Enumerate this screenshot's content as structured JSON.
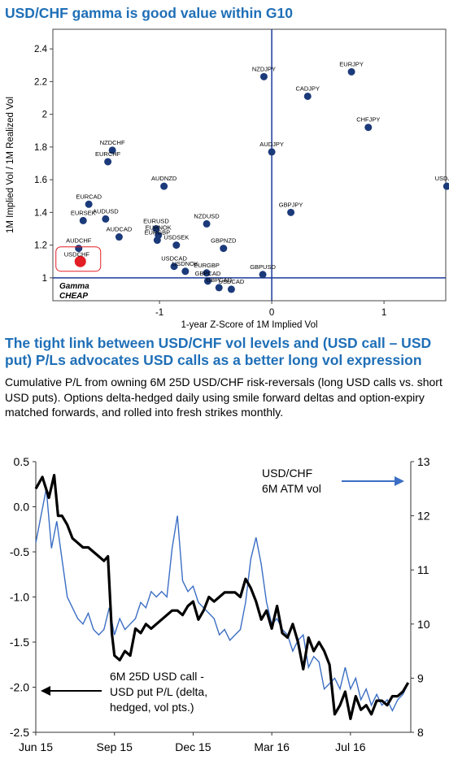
{
  "charts_header": {
    "scatter_title": "USD/CHF gamma is good value within G10",
    "line_title": "The tight link between USD/CHF vol levels and (USD call – USD put) P/Ls advocates USD calls as a better long vol expression",
    "line_description": "Cumulative P/L from owning 6M 25D USD/CHF risk-reversals (long USD calls vs. short USD puts). Options delta-hedged daily using smile forward deltas and option-expiry matched forwards, and rolled into fresh strikes monthly."
  },
  "colors": {
    "accent": "#1f6fb7",
    "point": "#1b3a7a",
    "highlight": "#e31e24",
    "axis": "#1b3a9a",
    "line_black": "#000000",
    "line_blue": "#3b6ec4"
  },
  "chart_data": [
    {
      "type": "scatter",
      "title": "USD/CHF gamma is good value within G10",
      "xlabel": "1-year Z-Score of 1M Implied Vol",
      "ylabel": "1M Implied Vol / 1M Realized Vol",
      "xlim": [
        -1.95,
        1.55
      ],
      "ylim": [
        0.86,
        2.52
      ],
      "x_ticks": [
        "-1",
        "0",
        "1"
      ],
      "y_ticks": [
        "1",
        "1.2",
        "1.4",
        "1.6",
        "1.8",
        "2",
        "2.2",
        "2.4"
      ],
      "annotation": "Gamma CHEAP",
      "grid": false,
      "points": [
        {
          "label": "NZDJPY",
          "x": -0.07,
          "y": 2.23
        },
        {
          "label": "EURJPY",
          "x": 0.71,
          "y": 2.26
        },
        {
          "label": "CADJPY",
          "x": 0.32,
          "y": 2.11
        },
        {
          "label": "CHFJPY",
          "x": 0.86,
          "y": 1.92
        },
        {
          "label": "AUDJPY",
          "x": 0.0,
          "y": 1.77
        },
        {
          "label": "USDJPY",
          "x": 1.56,
          "y": 1.56
        },
        {
          "label": "GBPJPY",
          "x": 0.17,
          "y": 1.4
        },
        {
          "label": "NZDCHF",
          "x": -1.42,
          "y": 1.78
        },
        {
          "label": "EURCHF",
          "x": -1.46,
          "y": 1.71
        },
        {
          "label": "AUDNZD",
          "x": -0.96,
          "y": 1.56
        },
        {
          "label": "EURCAD",
          "x": -1.63,
          "y": 1.45
        },
        {
          "label": "EURSEK",
          "x": -1.68,
          "y": 1.35
        },
        {
          "label": "AUDUSD",
          "x": -1.48,
          "y": 1.36
        },
        {
          "label": "NZDUSD",
          "x": -0.58,
          "y": 1.33
        },
        {
          "label": "AUDCAD",
          "x": -1.36,
          "y": 1.25
        },
        {
          "label": "EURUSD",
          "x": -1.03,
          "y": 1.3
        },
        {
          "label": "EURNOK",
          "x": -1.01,
          "y": 1.26
        },
        {
          "label": "EURGBP",
          "x": -1.02,
          "y": 1.23
        },
        {
          "label": "GBPNZD",
          "x": -0.43,
          "y": 1.18
        },
        {
          "label": "USDSEK",
          "x": -0.85,
          "y": 1.2
        },
        {
          "label": "AUDCHF",
          "x": -1.72,
          "y": 1.18
        },
        {
          "label": "USDCHF",
          "x": -1.72,
          "y": 1.1
        },
        {
          "label": "USDCAD",
          "x": -0.87,
          "y": 1.07
        },
        {
          "label": "USDNOK",
          "x": -0.77,
          "y": 1.04
        },
        {
          "label": "EURGBP",
          "x": -0.58,
          "y": 1.03
        },
        {
          "label": "GBPUSD",
          "x": -0.08,
          "y": 1.02
        },
        {
          "label": "GBPCAD",
          "x": -0.57,
          "y": 0.98
        },
        {
          "label": "GBPCAD",
          "x": -0.47,
          "y": 0.94
        },
        {
          "label": "USDCAD",
          "x": -0.36,
          "y": 0.93
        }
      ],
      "highlight": "USDCHF"
    },
    {
      "type": "line",
      "title": "The tight link between USD/CHF vol levels and (USD call – USD put) P/Ls advocates USD calls as a better long vol expression",
      "x_ticks": [
        "Jun 15",
        "Sep 15",
        "Dec 15",
        "Mar 16",
        "Jul 16"
      ],
      "x_tick_positions": [
        0,
        3,
        6,
        9,
        12
      ],
      "x_range": [
        0,
        14.3
      ],
      "y_left": {
        "ticks": [
          "0.5",
          "0.0",
          "-0.5",
          "-1.0",
          "-1.5",
          "-2.0",
          "-2.5"
        ],
        "ylim": [
          -2.5,
          0.5
        ]
      },
      "y_right": {
        "ticks": [
          "13",
          "12",
          "11",
          "10",
          "9",
          "8"
        ],
        "ylim": [
          8,
          13
        ]
      },
      "annotations": [
        "USD/CHF 6M ATM vol",
        "6M 25D USD call - USD put P/L (delta, hedged, vol pts.)"
      ],
      "series": [
        {
          "name": "6M 25D USD call - USD put P/L (delta, hedged, vol pts.)",
          "axis": "left",
          "x": [
            0,
            0.25,
            0.5,
            0.7,
            0.85,
            1.0,
            1.2,
            1.4,
            1.6,
            1.8,
            2.0,
            2.2,
            2.4,
            2.6,
            2.75,
            2.9,
            3.0,
            3.2,
            3.4,
            3.6,
            3.8,
            4.0,
            4.2,
            4.4,
            4.6,
            4.8,
            5.0,
            5.2,
            5.4,
            5.6,
            5.8,
            6.0,
            6.2,
            6.4,
            6.6,
            6.8,
            7.0,
            7.2,
            7.4,
            7.6,
            7.8,
            8.0,
            8.2,
            8.4,
            8.6,
            8.8,
            9.0,
            9.2,
            9.4,
            9.6,
            9.8,
            10.0,
            10.2,
            10.4,
            10.6,
            10.8,
            11.0,
            11.2,
            11.4,
            11.6,
            11.8,
            12.0,
            12.2,
            12.4,
            12.6,
            12.8,
            13.0,
            13.2,
            13.4,
            13.6,
            13.8,
            14.0,
            14.2
          ],
          "values": [
            0.2,
            0.33,
            0.1,
            0.35,
            -0.1,
            -0.1,
            -0.2,
            -0.35,
            -0.4,
            -0.45,
            -0.45,
            -0.5,
            -0.55,
            -0.6,
            -0.55,
            -1.4,
            -1.65,
            -1.7,
            -1.6,
            -1.65,
            -1.35,
            -1.4,
            -1.3,
            -1.35,
            -1.3,
            -1.25,
            -1.2,
            -1.15,
            -1.15,
            -1.2,
            -1.1,
            -1.05,
            -1.25,
            -1.15,
            -1.0,
            -1.05,
            -1.0,
            -0.95,
            -0.95,
            -0.95,
            -1.0,
            -0.8,
            -0.9,
            -1.05,
            -1.25,
            -1.15,
            -1.35,
            -1.1,
            -1.4,
            -1.45,
            -1.3,
            -1.5,
            -1.8,
            -1.45,
            -1.6,
            -1.5,
            -1.6,
            -1.75,
            -2.3,
            -2.2,
            -2.05,
            -2.35,
            -2.1,
            -2.25,
            -2.2,
            -2.3,
            -2.15,
            -2.15,
            -2.2,
            -2.1,
            -2.1,
            -2.05,
            -1.95
          ]
        },
        {
          "name": "USD/CHF 6M ATM vol",
          "axis": "right",
          "x": [
            0,
            0.2,
            0.4,
            0.6,
            0.8,
            1.0,
            1.2,
            1.4,
            1.6,
            1.8,
            2.0,
            2.2,
            2.4,
            2.6,
            2.8,
            3.0,
            3.2,
            3.4,
            3.6,
            3.8,
            4.0,
            4.2,
            4.4,
            4.6,
            4.8,
            5.0,
            5.2,
            5.4,
            5.6,
            5.8,
            6.0,
            6.2,
            6.4,
            6.6,
            6.8,
            7.0,
            7.2,
            7.4,
            7.6,
            7.8,
            8.0,
            8.2,
            8.4,
            8.6,
            8.8,
            9.0,
            9.2,
            9.4,
            9.6,
            9.8,
            10.0,
            10.2,
            10.4,
            10.6,
            10.8,
            11.0,
            11.2,
            11.4,
            11.6,
            11.8,
            12.0,
            12.2,
            12.4,
            12.6,
            12.8,
            13.0,
            13.2,
            13.4,
            13.6,
            13.8,
            14.0,
            14.2
          ],
          "values": [
            11.5,
            12.0,
            12.5,
            11.4,
            11.9,
            11.2,
            10.5,
            10.3,
            10.1,
            10.0,
            10.2,
            9.9,
            9.8,
            9.9,
            10.3,
            9.8,
            10.1,
            9.9,
            10.0,
            10.1,
            10.4,
            10.3,
            10.6,
            10.5,
            10.6,
            10.5,
            11.4,
            12.0,
            10.8,
            10.6,
            10.7,
            10.4,
            10.3,
            10.2,
            10.1,
            9.8,
            9.9,
            9.7,
            9.8,
            9.9,
            10.4,
            11.2,
            11.6,
            11.1,
            10.4,
            10.0,
            10.1,
            9.9,
            9.8,
            9.5,
            9.7,
            9.8,
            9.2,
            9.4,
            9.3,
            8.8,
            8.9,
            9.0,
            8.8,
            9.2,
            8.8,
            9.0,
            8.6,
            8.8,
            8.5,
            8.7,
            8.5,
            8.6,
            8.4,
            8.6,
            8.7,
            8.9
          ]
        }
      ]
    }
  ]
}
